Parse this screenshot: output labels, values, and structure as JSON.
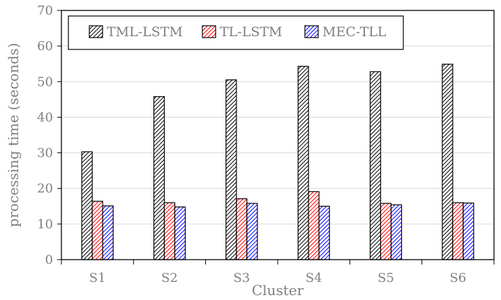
{
  "chart_data": {
    "type": "bar",
    "title": "",
    "xlabel": "Cluster",
    "ylabel": "processing time (seconds)",
    "categories": [
      "S1",
      "S2",
      "S3",
      "S4",
      "S5",
      "S6"
    ],
    "ylim": [
      0,
      70
    ],
    "yticks": [
      0,
      10,
      20,
      30,
      40,
      50,
      60,
      70
    ],
    "grid": true,
    "legend_position": "top",
    "series": [
      {
        "name": "TML-LSTM",
        "color": "#000000",
        "values": [
          30.3,
          45.8,
          50.5,
          54.3,
          52.8,
          54.9
        ]
      },
      {
        "name": "TL-LSTM",
        "color": "#ff0000",
        "values": [
          16.4,
          16.0,
          17.1,
          19.1,
          15.8,
          16.0
        ]
      },
      {
        "name": "MEC-TLL",
        "color": "#0000ff",
        "values": [
          15.1,
          14.8,
          15.8,
          15.0,
          15.4,
          15.9
        ]
      }
    ]
  }
}
